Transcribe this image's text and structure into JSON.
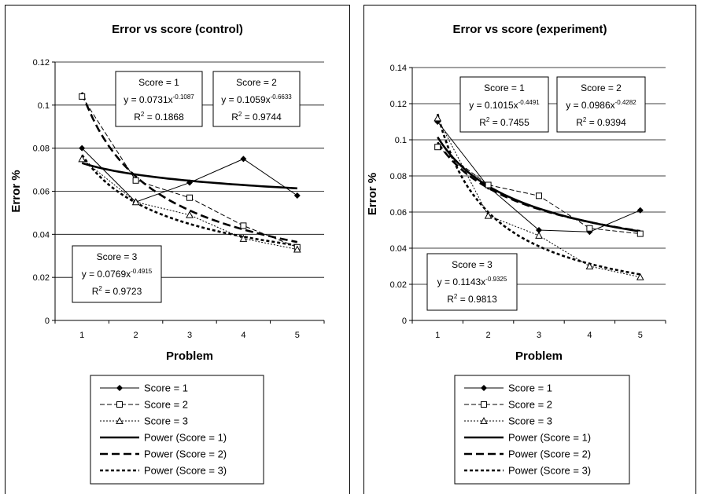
{
  "chart_data": [
    {
      "type": "line",
      "title": "Error vs score (control)",
      "xlabel": "Problem",
      "ylabel": "Error %",
      "x": [
        1,
        2,
        3,
        4,
        5
      ],
      "xlim": [
        0.5,
        5.5
      ],
      "ylim": [
        0,
        0.12
      ],
      "yticks": [
        0,
        0.02,
        0.04,
        0.06,
        0.08,
        0.1,
        0.12
      ],
      "ytick_labels": [
        "0",
        "0.02",
        "0.04",
        "0.06",
        "0.08",
        "0.1",
        "0.12"
      ],
      "grid": "horizontal",
      "legend_position": "bottom",
      "series": [
        {
          "name": "Score = 1",
          "style": "solid-diamond",
          "values": [
            0.08,
            0.055,
            0.064,
            0.075,
            0.058
          ]
        },
        {
          "name": "Score = 2",
          "style": "dashed-square",
          "values": [
            0.104,
            0.065,
            0.057,
            0.044,
            0.034
          ]
        },
        {
          "name": "Score = 3",
          "style": "dotted-triangle",
          "values": [
            0.075,
            0.055,
            0.049,
            0.038,
            0.033
          ]
        }
      ],
      "trendlines": [
        {
          "name": "Power (Score = 1)",
          "style": "solid-thick",
          "a": 0.0731,
          "b": -0.1087
        },
        {
          "name": "Power (Score = 2)",
          "style": "longdash-thick",
          "a": 0.1059,
          "b": -0.6633
        },
        {
          "name": "Power (Score = 3)",
          "style": "shortdash-thick",
          "a": 0.0769,
          "b": -0.4915
        }
      ],
      "annotations": [
        {
          "score": "Score = 1",
          "coef": "0.0731",
          "exp": "-0.1087",
          "r2": "0.1868"
        },
        {
          "score": "Score = 2",
          "coef": "0.1059",
          "exp": "-0.6633",
          "r2": "0.9744"
        },
        {
          "score": "Score = 3",
          "coef": "0.0769",
          "exp": "-0.4915",
          "r2": "0.9723"
        }
      ]
    },
    {
      "type": "line",
      "title": "Error vs score (experiment)",
      "xlabel": "Problem",
      "ylabel": "Error %",
      "x": [
        1,
        2,
        3,
        4,
        5
      ],
      "xlim": [
        0.5,
        5.5
      ],
      "ylim": [
        0,
        0.14
      ],
      "yticks": [
        0,
        0.02,
        0.04,
        0.06,
        0.08,
        0.1,
        0.12,
        0.14
      ],
      "ytick_labels": [
        "0",
        "0.02",
        "0.04",
        "0.06",
        "0.08",
        "0.1",
        "0.12",
        "0.14"
      ],
      "grid": "horizontal",
      "legend_position": "bottom",
      "series": [
        {
          "name": "Score = 1",
          "style": "solid-diamond",
          "values": [
            0.11,
            0.074,
            0.05,
            0.049,
            0.061
          ]
        },
        {
          "name": "Score = 2",
          "style": "dashed-square",
          "values": [
            0.096,
            0.075,
            0.069,
            0.051,
            0.048
          ]
        },
        {
          "name": "Score = 3",
          "style": "dotted-triangle",
          "values": [
            0.112,
            0.058,
            0.047,
            0.03,
            0.024
          ]
        }
      ],
      "trendlines": [
        {
          "name": "Power (Score = 1)",
          "style": "solid-thick",
          "a": 0.1015,
          "b": -0.4491
        },
        {
          "name": "Power (Score = 2)",
          "style": "longdash-thick",
          "a": 0.0986,
          "b": -0.4282
        },
        {
          "name": "Power (Score = 3)",
          "style": "shortdash-thick",
          "a": 0.1143,
          "b": -0.9325
        }
      ],
      "annotations": [
        {
          "score": "Score = 1",
          "coef": "0.1015",
          "exp": "-0.4491",
          "r2": "0.7455"
        },
        {
          "score": "Score = 2",
          "coef": "0.0986",
          "exp": "-0.4282",
          "r2": "0.9394"
        },
        {
          "score": "Score = 3",
          "coef": "0.1143",
          "exp": "-0.9325",
          "r2": "0.9813"
        }
      ]
    }
  ]
}
